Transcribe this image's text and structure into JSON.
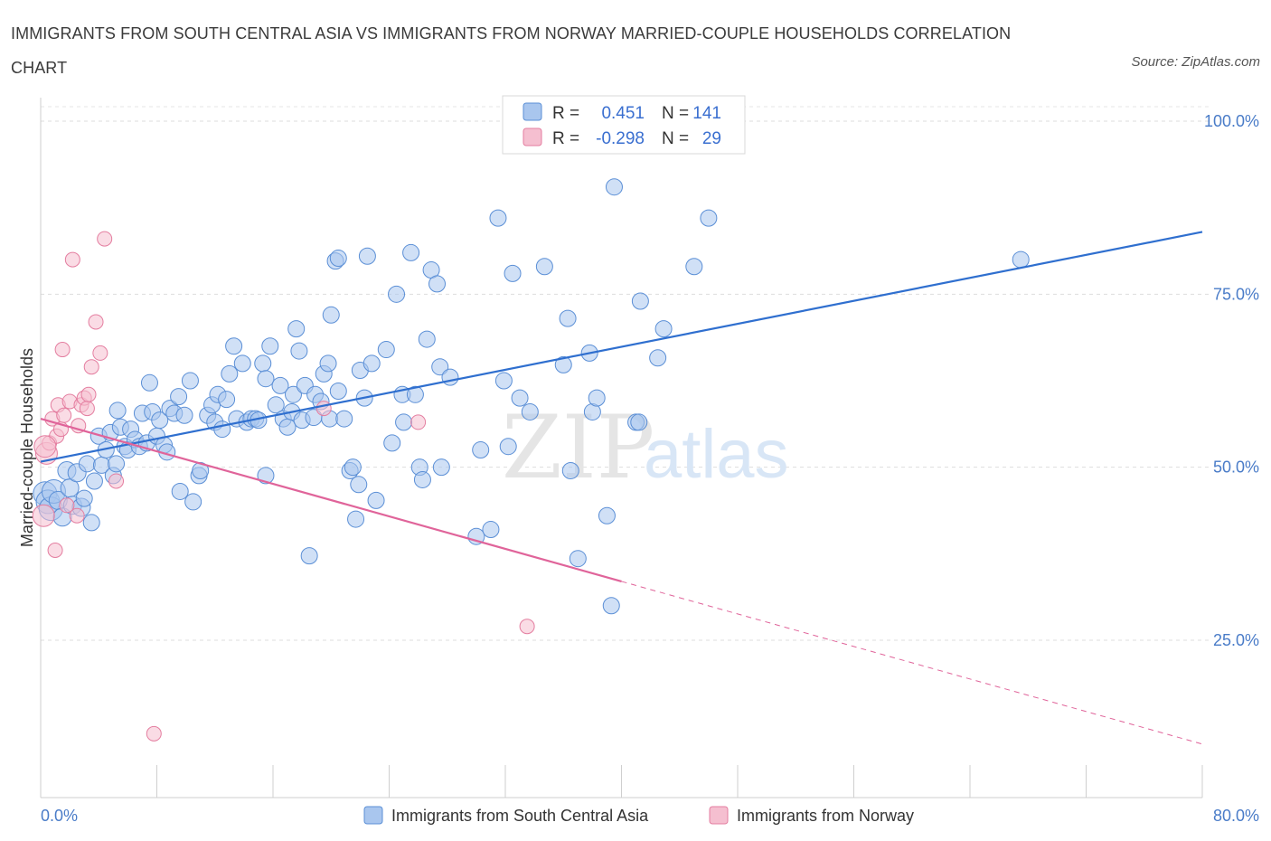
{
  "title": "IMMIGRANTS FROM SOUTH CENTRAL ASIA VS IMMIGRANTS FROM NORWAY MARRIED-COUPLE HOUSEHOLDS CORRELATION CHART",
  "source": "Source: ZipAtlas.com",
  "watermark": {
    "zip": "ZIP",
    "atlas": "atlas"
  },
  "legend": {
    "r_label": "R =",
    "n_label": "N =",
    "rows": [
      {
        "r": "0.451",
        "n": "141"
      },
      {
        "r": "-0.298",
        "n": "29"
      }
    ]
  },
  "colors": {
    "blue": "#5b8fd6",
    "blue_fill": "#a9c6ee",
    "blue_line": "#2f6fcf",
    "pink": "#e47ea0",
    "pink_fill": "#f5bfd0",
    "pink_line": "#e0649a"
  },
  "chart_data": {
    "type": "scatter",
    "xlabel": "",
    "ylabel": "Married-couple Households",
    "xlim": [
      0,
      80
    ],
    "ylim": [
      0,
      100
    ],
    "x_tick_labels": [
      "0.0%",
      "80.0%"
    ],
    "y_ticks": [
      25,
      50,
      75,
      100
    ],
    "y_tick_labels": [
      "25.0%",
      "50.0%",
      "75.0%",
      "100.0%"
    ],
    "grid": true,
    "legend_position": "top-center",
    "series": [
      {
        "name": "Immigrants from South Central Asia",
        "trend": {
          "x0": 0,
          "y0": 50.8,
          "x1": 80,
          "y1": 84.0
        },
        "points": [
          [
            0.3,
            46.2
          ],
          [
            0.5,
            45.0
          ],
          [
            0.7,
            44.0
          ],
          [
            0.9,
            46.5
          ],
          [
            1.2,
            45.2
          ],
          [
            1.5,
            42.8
          ],
          [
            1.8,
            49.5
          ],
          [
            2.0,
            47.0
          ],
          [
            2.2,
            44.5
          ],
          [
            2.5,
            49.2
          ],
          [
            2.8,
            44.2
          ],
          [
            3.0,
            45.5
          ],
          [
            3.2,
            50.5
          ],
          [
            3.5,
            42.0
          ],
          [
            3.7,
            48.0
          ],
          [
            4.0,
            54.5
          ],
          [
            4.2,
            50.3
          ],
          [
            4.5,
            52.5
          ],
          [
            4.8,
            55.0
          ],
          [
            5.0,
            48.8
          ],
          [
            5.2,
            50.5
          ],
          [
            5.3,
            58.2
          ],
          [
            5.5,
            55.8
          ],
          [
            5.8,
            53.0
          ],
          [
            6.0,
            52.5
          ],
          [
            6.2,
            55.5
          ],
          [
            6.5,
            54.0
          ],
          [
            6.8,
            53.0
          ],
          [
            7.0,
            57.8
          ],
          [
            7.3,
            53.5
          ],
          [
            7.5,
            62.2
          ],
          [
            7.7,
            58.0
          ],
          [
            8.0,
            54.5
          ],
          [
            8.2,
            56.8
          ],
          [
            8.5,
            53.2
          ],
          [
            8.7,
            52.2
          ],
          [
            8.9,
            58.5
          ],
          [
            9.2,
            57.8
          ],
          [
            9.5,
            60.2
          ],
          [
            9.6,
            46.5
          ],
          [
            9.9,
            57.5
          ],
          [
            10.3,
            62.5
          ],
          [
            10.5,
            45.0
          ],
          [
            10.9,
            48.8
          ],
          [
            11.0,
            49.5
          ],
          [
            11.5,
            57.5
          ],
          [
            11.8,
            59.0
          ],
          [
            12.0,
            56.5
          ],
          [
            12.2,
            60.5
          ],
          [
            12.5,
            55.5
          ],
          [
            12.8,
            59.8
          ],
          [
            13.0,
            63.5
          ],
          [
            13.3,
            67.5
          ],
          [
            13.5,
            57.0
          ],
          [
            13.9,
            65.0
          ],
          [
            14.2,
            56.5
          ],
          [
            14.5,
            57.0
          ],
          [
            14.8,
            57.0
          ],
          [
            15.0,
            56.8
          ],
          [
            15.3,
            65.0
          ],
          [
            15.5,
            62.8
          ],
          [
            15.5,
            48.8
          ],
          [
            15.8,
            67.5
          ],
          [
            16.2,
            59.0
          ],
          [
            16.5,
            61.8
          ],
          [
            16.7,
            57.0
          ],
          [
            17.0,
            55.8
          ],
          [
            17.3,
            58.0
          ],
          [
            17.4,
            60.5
          ],
          [
            17.6,
            70.0
          ],
          [
            17.8,
            66.8
          ],
          [
            18.0,
            56.8
          ],
          [
            18.2,
            61.8
          ],
          [
            18.5,
            37.2
          ],
          [
            18.8,
            57.2
          ],
          [
            18.9,
            60.5
          ],
          [
            19.3,
            59.5
          ],
          [
            19.5,
            63.5
          ],
          [
            19.8,
            65.0
          ],
          [
            19.9,
            57.0
          ],
          [
            20.0,
            72.0
          ],
          [
            20.3,
            79.8
          ],
          [
            20.5,
            61.0
          ],
          [
            20.5,
            80.2
          ],
          [
            20.9,
            57.0
          ],
          [
            21.3,
            49.5
          ],
          [
            21.5,
            50.0
          ],
          [
            21.7,
            42.5
          ],
          [
            21.9,
            47.5
          ],
          [
            22.0,
            64.0
          ],
          [
            22.3,
            60.0
          ],
          [
            22.5,
            80.5
          ],
          [
            22.8,
            65.0
          ],
          [
            23.1,
            45.2
          ],
          [
            23.8,
            67.0
          ],
          [
            24.2,
            53.5
          ],
          [
            24.5,
            75.0
          ],
          [
            24.9,
            60.5
          ],
          [
            25.0,
            56.5
          ],
          [
            25.5,
            81.0
          ],
          [
            25.8,
            60.5
          ],
          [
            26.1,
            50.0
          ],
          [
            26.3,
            48.2
          ],
          [
            26.6,
            68.5
          ],
          [
            26.9,
            78.5
          ],
          [
            27.3,
            76.5
          ],
          [
            27.5,
            64.5
          ],
          [
            27.6,
            50.0
          ],
          [
            28.2,
            63.0
          ],
          [
            30.0,
            40.0
          ],
          [
            30.3,
            52.5
          ],
          [
            31.0,
            41.0
          ],
          [
            31.5,
            86.0
          ],
          [
            31.9,
            62.5
          ],
          [
            32.2,
            53.0
          ],
          [
            32.5,
            78.0
          ],
          [
            33.0,
            60.0
          ],
          [
            33.7,
            58.0
          ],
          [
            34.7,
            79.0
          ],
          [
            36.0,
            64.8
          ],
          [
            36.3,
            71.5
          ],
          [
            36.5,
            49.5
          ],
          [
            37.0,
            36.8
          ],
          [
            38.0,
            58.0
          ],
          [
            38.3,
            60.0
          ],
          [
            39.0,
            43.0
          ],
          [
            39.3,
            30.0
          ],
          [
            39.5,
            90.5
          ],
          [
            37.8,
            66.5
          ],
          [
            41.0,
            56.5
          ],
          [
            41.2,
            56.5
          ],
          [
            41.3,
            74.0
          ],
          [
            42.5,
            65.8
          ],
          [
            42.9,
            70.0
          ],
          [
            45.0,
            79.0
          ],
          [
            46.0,
            86.0
          ],
          [
            67.5,
            80.0
          ]
        ]
      },
      {
        "name": "Immigrants from Norway",
        "trend": {
          "x0": 0,
          "y0": 57.0,
          "x1": 40,
          "y1": 33.5,
          "dash_to_x": 80,
          "dash_to_y": 10.0
        },
        "points": [
          [
            0.2,
            43.0
          ],
          [
            0.4,
            52.0
          ],
          [
            0.6,
            53.5
          ],
          [
            0.8,
            57.0
          ],
          [
            1.0,
            38.0
          ],
          [
            1.1,
            54.5
          ],
          [
            1.2,
            59.0
          ],
          [
            1.4,
            55.5
          ],
          [
            1.5,
            67.0
          ],
          [
            1.6,
            57.5
          ],
          [
            1.8,
            44.5
          ],
          [
            2.0,
            59.5
          ],
          [
            2.2,
            80.0
          ],
          [
            2.5,
            43.0
          ],
          [
            2.6,
            56.0
          ],
          [
            2.8,
            59.0
          ],
          [
            3.0,
            60.0
          ],
          [
            3.2,
            58.5
          ],
          [
            3.3,
            60.5
          ],
          [
            3.5,
            64.5
          ],
          [
            3.8,
            71.0
          ],
          [
            4.1,
            66.5
          ],
          [
            4.4,
            83.0
          ],
          [
            5.2,
            48.0
          ],
          [
            7.8,
            11.5
          ],
          [
            19.5,
            58.5
          ],
          [
            26.0,
            56.5
          ],
          [
            33.5,
            27.0
          ],
          [
            0.3,
            53.0
          ]
        ]
      }
    ]
  },
  "bottom_legend": [
    "Immigrants from South Central Asia",
    "Immigrants from Norway"
  ]
}
